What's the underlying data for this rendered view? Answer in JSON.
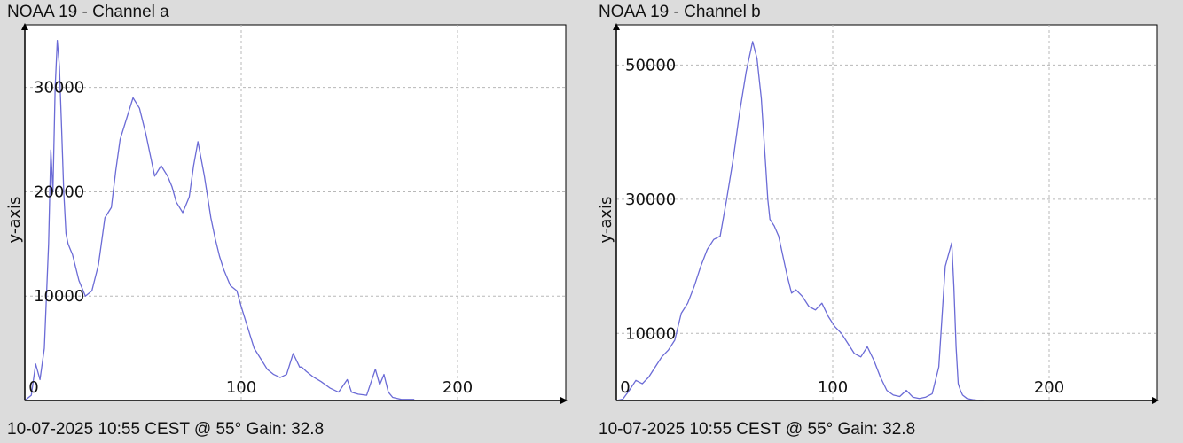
{
  "colors": {
    "background": "#dcdcdc",
    "plot_bg": "#ffffff",
    "grid": "#b8b8b8",
    "line": "#6b6bd6",
    "axis": "#000000"
  },
  "panels": [
    {
      "title": "NOAA 19 - Channel a",
      "footer": "10-07-2025 10:55 CEST @ 55° Gain: 32.8",
      "ylabel": "y-axis"
    },
    {
      "title": "NOAA 19 - Channel b",
      "footer": "10-07-2025 10:55 CEST @ 55° Gain: 32.8",
      "ylabel": "y-axis"
    }
  ],
  "chart_data": [
    {
      "type": "line",
      "title": "NOAA 19 - Channel a",
      "ylabel": "y-axis",
      "xlim": [
        0,
        250
      ],
      "ylim": [
        0,
        36000
      ],
      "xticks": [
        0,
        100,
        200
      ],
      "yticks": [
        10000,
        20000,
        30000
      ],
      "grid": true,
      "x": [
        0,
        3,
        5,
        7,
        9,
        11,
        12,
        13,
        14,
        15,
        16,
        17,
        18,
        19,
        20,
        21,
        22,
        25,
        28,
        31,
        34,
        37,
        40,
        42,
        44,
        47,
        50,
        53,
        56,
        58,
        60,
        63,
        66,
        68,
        70,
        73,
        76,
        78,
        80,
        83,
        86,
        88,
        90,
        92,
        95,
        98,
        100,
        103,
        106,
        109,
        112,
        115,
        118,
        121,
        124,
        127,
        128,
        130,
        133,
        137,
        141,
        145,
        149,
        151,
        154,
        158,
        162,
        164,
        166,
        168,
        170,
        174,
        180
      ],
      "values": [
        0,
        500,
        3500,
        2000,
        5000,
        15000,
        24000,
        20000,
        30000,
        34500,
        32000,
        26000,
        20000,
        16000,
        15000,
        14500,
        14000,
        11500,
        10000,
        10500,
        13000,
        17500,
        18500,
        22000,
        25000,
        27000,
        29000,
        28000,
        25500,
        23500,
        21500,
        22500,
        21500,
        20500,
        19000,
        18000,
        19500,
        22500,
        24800,
        21500,
        17500,
        15500,
        13800,
        12500,
        11000,
        10500,
        9000,
        7000,
        5000,
        4000,
        3000,
        2500,
        2200,
        2500,
        4500,
        3200,
        3200,
        2800,
        2300,
        1800,
        1200,
        800,
        2000,
        800,
        600,
        500,
        3000,
        1500,
        2500,
        800,
        300,
        100,
        100
      ]
    },
    {
      "type": "line",
      "title": "NOAA 19 - Channel b",
      "ylabel": "y-axis",
      "xlim": [
        0,
        250
      ],
      "ylim": [
        0,
        56000
      ],
      "xticks": [
        0,
        100,
        200
      ],
      "yticks": [
        10000,
        30000,
        50000
      ],
      "grid": true,
      "x": [
        0,
        3,
        6,
        9,
        12,
        15,
        18,
        21,
        24,
        27,
        30,
        33,
        36,
        39,
        42,
        45,
        48,
        51,
        54,
        57,
        60,
        63,
        65,
        67,
        69,
        70,
        71,
        73,
        75,
        77,
        79,
        81,
        83,
        86,
        89,
        92,
        95,
        98,
        101,
        104,
        107,
        110,
        113,
        116,
        119,
        122,
        125,
        128,
        131,
        134,
        137,
        140,
        143,
        146,
        149,
        152,
        155,
        156,
        157,
        158,
        159,
        160,
        162,
        165,
        168,
        170
      ],
      "values": [
        0,
        200,
        1500,
        3000,
        2500,
        3500,
        5000,
        6500,
        7500,
        9000,
        13000,
        14500,
        17000,
        20000,
        22500,
        24000,
        24500,
        30000,
        36000,
        43000,
        49000,
        53500,
        51000,
        45000,
        35000,
        30000,
        27000,
        26000,
        24500,
        21500,
        18500,
        16000,
        16500,
        15500,
        14000,
        13500,
        14500,
        12500,
        11000,
        10000,
        8500,
        7000,
        6500,
        8000,
        6000,
        3500,
        1500,
        800,
        600,
        1500,
        500,
        300,
        500,
        1000,
        5000,
        20000,
        23500,
        17000,
        8000,
        2500,
        1500,
        800,
        300,
        100,
        0,
        0
      ]
    }
  ]
}
